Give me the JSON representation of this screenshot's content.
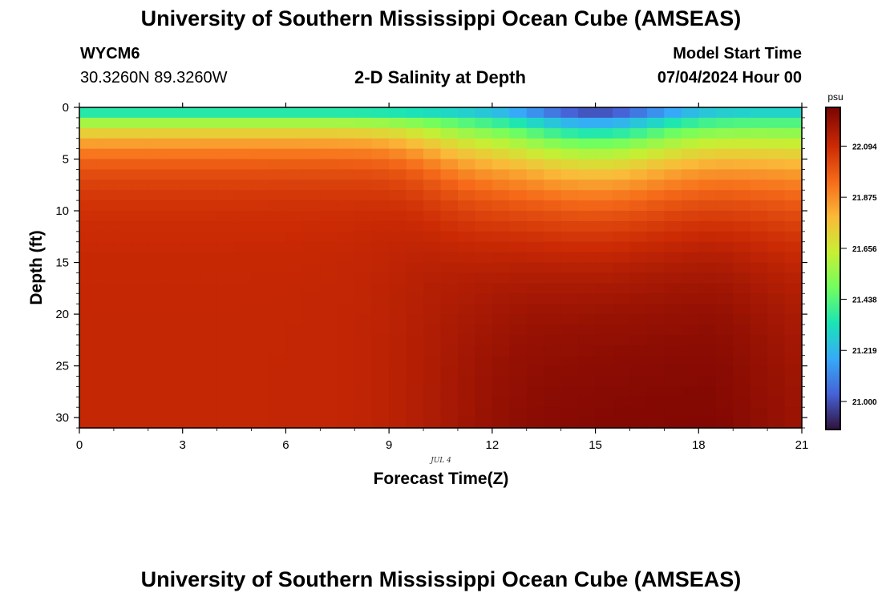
{
  "header": {
    "title": "University of Southern Mississippi Ocean Cube (AMSEAS)",
    "station": "WYCM6",
    "coords": "30.3260N  89.3260W",
    "chart_title": "2-D Salinity at Depth",
    "model_label": "Model Start Time",
    "model_time": "07/04/2024 Hour 00"
  },
  "footer": {
    "title": "University of Southern Mississippi Ocean Cube (AMSEAS)"
  },
  "chart_data": {
    "type": "heatmap",
    "title": "2-D Salinity at Depth",
    "xlabel": "Forecast Time(Z)",
    "ylabel": "Depth (ft)",
    "date_label": "JUL 4",
    "xlim": [
      0,
      21
    ],
    "ylim": [
      31,
      0
    ],
    "xticks": [
      0,
      3,
      6,
      9,
      12,
      15,
      18,
      21
    ],
    "yticks": [
      0,
      5,
      10,
      15,
      20,
      25,
      30
    ],
    "colorbar": {
      "unit": "psu",
      "ticks": [
        21.0,
        21.219,
        21.438,
        21.656,
        21.875,
        22.094
      ],
      "tick_labels": [
        "21.000",
        "21.219",
        "21.438",
        "21.656",
        "21.875",
        "22.094"
      ],
      "range": [
        20.88,
        22.26
      ],
      "colors": [
        "#30123b",
        "#4662d7",
        "#36aaf9",
        "#1ae4b6",
        "#72fe5e",
        "#c7ef34",
        "#faba39",
        "#f66b19",
        "#cb2a04",
        "#7a0403"
      ]
    },
    "grid": false,
    "description": "Salinity (psu) as function of forecast hour (0-21, 0.5 h steps) and depth (0-31 ft, 1 ft steps)",
    "times": [
      0,
      0.5,
      1,
      1.5,
      2,
      2.5,
      3,
      3.5,
      4,
      4.5,
      5,
      5.5,
      6,
      6.5,
      7,
      7.5,
      8,
      8.5,
      9,
      9.5,
      10,
      10.5,
      11,
      11.5,
      12,
      12.5,
      13,
      13.5,
      14,
      14.5,
      15,
      15.5,
      16,
      16.5,
      17,
      17.5,
      18,
      18.5,
      19,
      19.5,
      20,
      20.5,
      21
    ],
    "depths": [
      0,
      1,
      2,
      3,
      4,
      5,
      6,
      7,
      8,
      9,
      10,
      11,
      12,
      13,
      14,
      15,
      16,
      17,
      18,
      19,
      20,
      21,
      22,
      23,
      24,
      25,
      26,
      27,
      28,
      29,
      30,
      31
    ],
    "salinity_profile_examples": {
      "t0": {
        "0": 21.22,
        "2": 21.55,
        "4": 21.92,
        "6": 22.03,
        "10": 22.09,
        "20": 22.11,
        "30": 22.12
      },
      "t15": {
        "0": 20.9,
        "2": 21.2,
        "5": 21.55,
        "10": 22.02,
        "20": 22.24,
        "30": 22.25
      }
    }
  }
}
